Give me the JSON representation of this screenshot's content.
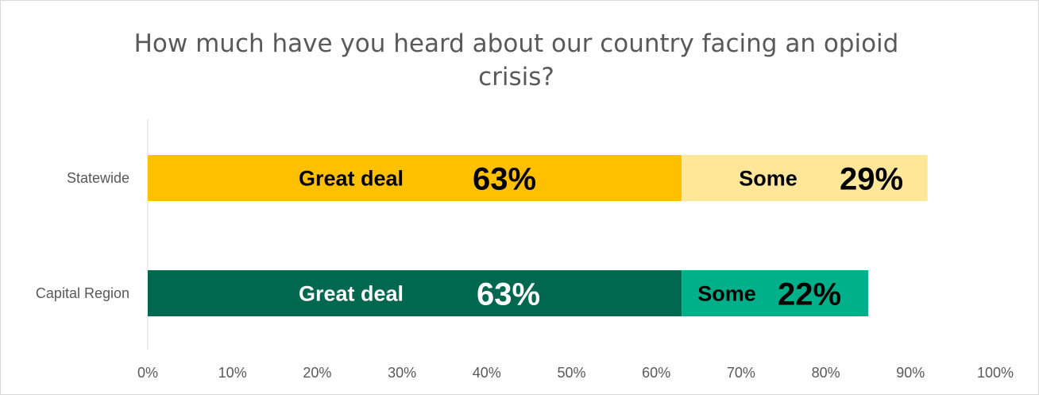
{
  "chart_data": {
    "type": "bar",
    "orientation": "horizontal",
    "stacked": true,
    "title": "How much have you heard about our country facing an opioid crisis?",
    "categories": [
      "Statewide",
      "Capital Region"
    ],
    "xlim": [
      0,
      100
    ],
    "x_ticks": [
      "0%",
      "10%",
      "20%",
      "30%",
      "40%",
      "50%",
      "60%",
      "70%",
      "80%",
      "90%",
      "100%"
    ],
    "grid": false,
    "legend": "none",
    "series": [
      {
        "name": "Great deal",
        "values": [
          63,
          63
        ],
        "colors": [
          "#FFC000",
          "#00684F"
        ],
        "label_colors": [
          "#000000",
          "#FFFFFF"
        ],
        "data_labels": [
          "63%",
          "63%"
        ]
      },
      {
        "name": "Some",
        "values": [
          29,
          22
        ],
        "colors": [
          "#FFE699",
          "#00B08A"
        ],
        "label_colors": [
          "#000000",
          "#000000"
        ],
        "data_labels": [
          "29%",
          "22%"
        ]
      }
    ]
  }
}
